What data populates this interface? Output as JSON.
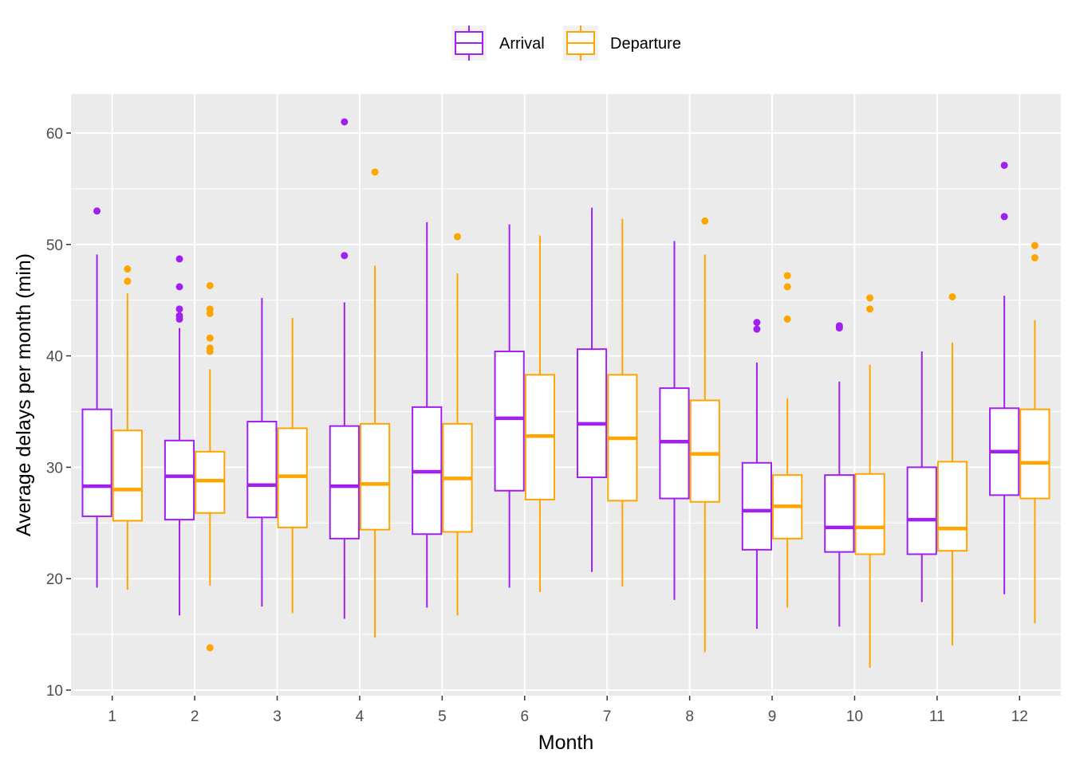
{
  "colors": {
    "Arrival": "#a020f0",
    "Departure": "#ffa500",
    "panel": "#ebebeb",
    "grid": "#ffffff"
  },
  "chart_data": {
    "type": "boxplot",
    "xlabel": "Month",
    "ylabel": "Average delays per month (min)",
    "categories": [
      "1",
      "2",
      "3",
      "4",
      "5",
      "6",
      "7",
      "8",
      "9",
      "10",
      "11",
      "12"
    ],
    "ylim": [
      9.5,
      63.5
    ],
    "yticks": [
      "10",
      "20",
      "30",
      "40",
      "50",
      "60"
    ],
    "legend": {
      "position": "top",
      "entries": [
        "Arrival",
        "Departure"
      ]
    },
    "grid": true,
    "series": [
      {
        "name": "Arrival",
        "boxes": [
          {
            "min": 19.2,
            "q1": 25.6,
            "median": 28.3,
            "q3": 35.2,
            "max": 49.1,
            "outliers": [
              53.0
            ]
          },
          {
            "min": 16.7,
            "q1": 25.3,
            "median": 29.2,
            "q3": 32.4,
            "max": 42.5,
            "outliers": [
              43.3,
              43.6,
              44.2,
              46.2,
              48.7
            ]
          },
          {
            "min": 17.5,
            "q1": 25.5,
            "median": 28.4,
            "q3": 34.1,
            "max": 45.2,
            "outliers": []
          },
          {
            "min": 16.4,
            "q1": 23.6,
            "median": 28.3,
            "q3": 33.7,
            "max": 44.8,
            "outliers": [
              49.0,
              61.0
            ]
          },
          {
            "min": 17.4,
            "q1": 24.0,
            "median": 29.6,
            "q3": 35.4,
            "max": 52.0,
            "outliers": []
          },
          {
            "min": 19.2,
            "q1": 27.9,
            "median": 34.4,
            "q3": 40.4,
            "max": 51.8,
            "outliers": []
          },
          {
            "min": 20.6,
            "q1": 29.1,
            "median": 33.9,
            "q3": 40.6,
            "max": 53.3,
            "outliers": []
          },
          {
            "min": 18.1,
            "q1": 27.2,
            "median": 32.3,
            "q3": 37.1,
            "max": 50.3,
            "outliers": []
          },
          {
            "min": 15.5,
            "q1": 22.6,
            "median": 26.1,
            "q3": 30.4,
            "max": 39.4,
            "outliers": [
              42.4,
              43.0
            ]
          },
          {
            "min": 15.7,
            "q1": 22.4,
            "median": 24.6,
            "q3": 29.3,
            "max": 37.7,
            "outliers": [
              42.5,
              42.7
            ]
          },
          {
            "min": 17.9,
            "q1": 22.2,
            "median": 25.3,
            "q3": 30.0,
            "max": 40.4,
            "outliers": []
          },
          {
            "min": 18.6,
            "q1": 27.5,
            "median": 31.4,
            "q3": 35.3,
            "max": 45.4,
            "outliers": [
              52.5,
              57.1
            ]
          }
        ]
      },
      {
        "name": "Departure",
        "boxes": [
          {
            "min": 19.0,
            "q1": 25.2,
            "median": 28.0,
            "q3": 33.3,
            "max": 45.6,
            "outliers": [
              46.7,
              47.8
            ]
          },
          {
            "min": 19.4,
            "q1": 25.9,
            "median": 28.8,
            "q3": 31.4,
            "max": 38.8,
            "outliers": [
              13.8,
              40.4,
              40.7,
              41.6,
              43.8,
              44.2,
              46.3
            ]
          },
          {
            "min": 16.9,
            "q1": 24.6,
            "median": 29.2,
            "q3": 33.5,
            "max": 43.4,
            "outliers": []
          },
          {
            "min": 14.7,
            "q1": 24.4,
            "median": 28.5,
            "q3": 33.9,
            "max": 48.1,
            "outliers": [
              56.5
            ]
          },
          {
            "min": 16.7,
            "q1": 24.2,
            "median": 29.0,
            "q3": 33.9,
            "max": 47.4,
            "outliers": [
              50.7
            ]
          },
          {
            "min": 18.8,
            "q1": 27.1,
            "median": 32.8,
            "q3": 38.3,
            "max": 50.8,
            "outliers": []
          },
          {
            "min": 19.3,
            "q1": 27.0,
            "median": 32.6,
            "q3": 38.3,
            "max": 52.3,
            "outliers": []
          },
          {
            "min": 13.4,
            "q1": 26.9,
            "median": 31.2,
            "q3": 36.0,
            "max": 49.1,
            "outliers": [
              52.1
            ]
          },
          {
            "min": 17.4,
            "q1": 23.6,
            "median": 26.5,
            "q3": 29.3,
            "max": 36.2,
            "outliers": [
              43.3,
              46.2,
              47.2
            ]
          },
          {
            "min": 12.0,
            "q1": 22.2,
            "median": 24.6,
            "q3": 29.4,
            "max": 39.2,
            "outliers": [
              44.2,
              45.2
            ]
          },
          {
            "min": 14.0,
            "q1": 22.5,
            "median": 24.5,
            "q3": 30.5,
            "max": 41.2,
            "outliers": [
              45.3
            ]
          },
          {
            "min": 16.0,
            "q1": 27.2,
            "median": 30.4,
            "q3": 35.2,
            "max": 43.2,
            "outliers": [
              48.8,
              49.9
            ]
          }
        ]
      }
    ]
  }
}
